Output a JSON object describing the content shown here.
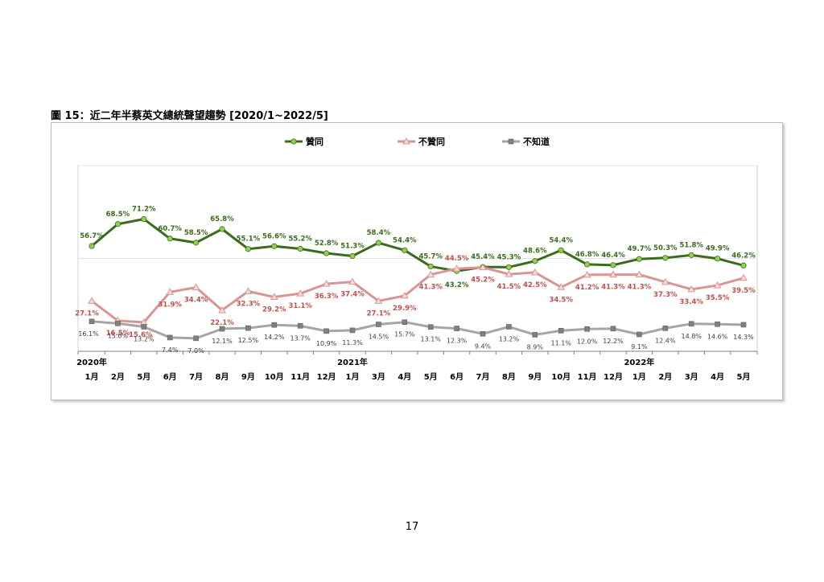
{
  "figure_title": "圖 15：近二年半蔡英文總統聲望趨勢  [2020/1~2022/5]",
  "page_number": "17",
  "chart_data": {
    "type": "line",
    "categories": [
      "1月",
      "2月",
      "5月",
      "6月",
      "7月",
      "8月",
      "9月",
      "10月",
      "11月",
      "12月",
      "1月",
      "3月",
      "4月",
      "5月",
      "6月",
      "7月",
      "8月",
      "9月",
      "10月",
      "11月",
      "12月",
      "1月",
      "2月",
      "3月",
      "4月",
      "5月"
    ],
    "year_labels": [
      {
        "label": "2020年",
        "index": 0
      },
      {
        "label": "2021年",
        "index": 10
      },
      {
        "label": "2022年",
        "index": 21
      }
    ],
    "ylim": [
      0,
      100
    ],
    "grid": true,
    "legend_position": "top",
    "series": [
      {
        "name": "贊同",
        "color": "#3b6b1d",
        "marker_color": "#92d050",
        "marker": "circle",
        "label_color": "#3b6b1d",
        "values": [
          56.7,
          68.5,
          71.2,
          60.7,
          58.5,
          65.8,
          55.1,
          56.6,
          55.2,
          52.8,
          51.3,
          58.4,
          54.4,
          45.7,
          43.2,
          45.4,
          45.3,
          48.6,
          54.4,
          46.8,
          46.4,
          49.7,
          50.3,
          51.8,
          49.9,
          46.2
        ],
        "labels": [
          "56.7%",
          "68.5%",
          "71.2%",
          "60.7%",
          "58.5%",
          "65.8%",
          "55.1%",
          "56.6%",
          "55.2%",
          "52.8%",
          "51.3%",
          "58.4%",
          "54.4%",
          "45.7%",
          "43.2%",
          "45.4%",
          "45.3%",
          "48.6%",
          "54.4%",
          "46.8%",
          "46.4%",
          "49.7%",
          "50.3%",
          "51.8%",
          "49.9%",
          "46.2%"
        ]
      },
      {
        "name": "不贊同",
        "color": "#d99594",
        "marker_color": "#f2dcdb",
        "marker": "triangle",
        "label_color": "#c0504d",
        "values": [
          27.1,
          16.5,
          15.6,
          31.9,
          34.4,
          22.1,
          32.3,
          29.2,
          31.1,
          36.3,
          37.4,
          27.1,
          29.9,
          41.3,
          44.5,
          45.2,
          41.5,
          42.5,
          34.5,
          41.2,
          41.3,
          41.3,
          37.3,
          33.4,
          35.5,
          39.5
        ],
        "labels": [
          "27.1%",
          "16.5%",
          "15.6%",
          "31.9%",
          "34.4%",
          "22.1%",
          "32.3%",
          "29.2%",
          "31.1%",
          "36.3%",
          "37.4%",
          "27.1%",
          "29.9%",
          "41.3%",
          "44.5%",
          "45.2%",
          "41.5%",
          "42.5%",
          "34.5%",
          "41.2%",
          "41.3%",
          "41.3%",
          "37.3%",
          "33.4%",
          "35.5%",
          "39.5%"
        ]
      },
      {
        "name": "不知道",
        "color": "#a6a6a6",
        "marker_color": "#808080",
        "marker": "square",
        "label_color": "#404040",
        "values": [
          16.1,
          15.0,
          13.2,
          7.4,
          7.0,
          12.1,
          12.5,
          14.2,
          13.7,
          10.9,
          11.3,
          14.5,
          15.7,
          13.1,
          12.3,
          9.4,
          13.2,
          8.9,
          11.1,
          12.0,
          12.2,
          9.1,
          12.4,
          14.8,
          14.6,
          14.3
        ],
        "labels": [
          "16.1%",
          "15.0%",
          "13.2%",
          "7.4%",
          "7.0%",
          "12.1%",
          "12.5%",
          "14.2%",
          "13.7%",
          "10.9%",
          "11.3%",
          "14.5%",
          "15.7%",
          "13.1%",
          "12.3%",
          "9.4%",
          "13.2%",
          "8.9%",
          "11.1%",
          "12.0%",
          "12.2%",
          "9.1%",
          "12.4%",
          "14.8%",
          "14.6%",
          "14.3%"
        ]
      }
    ]
  }
}
